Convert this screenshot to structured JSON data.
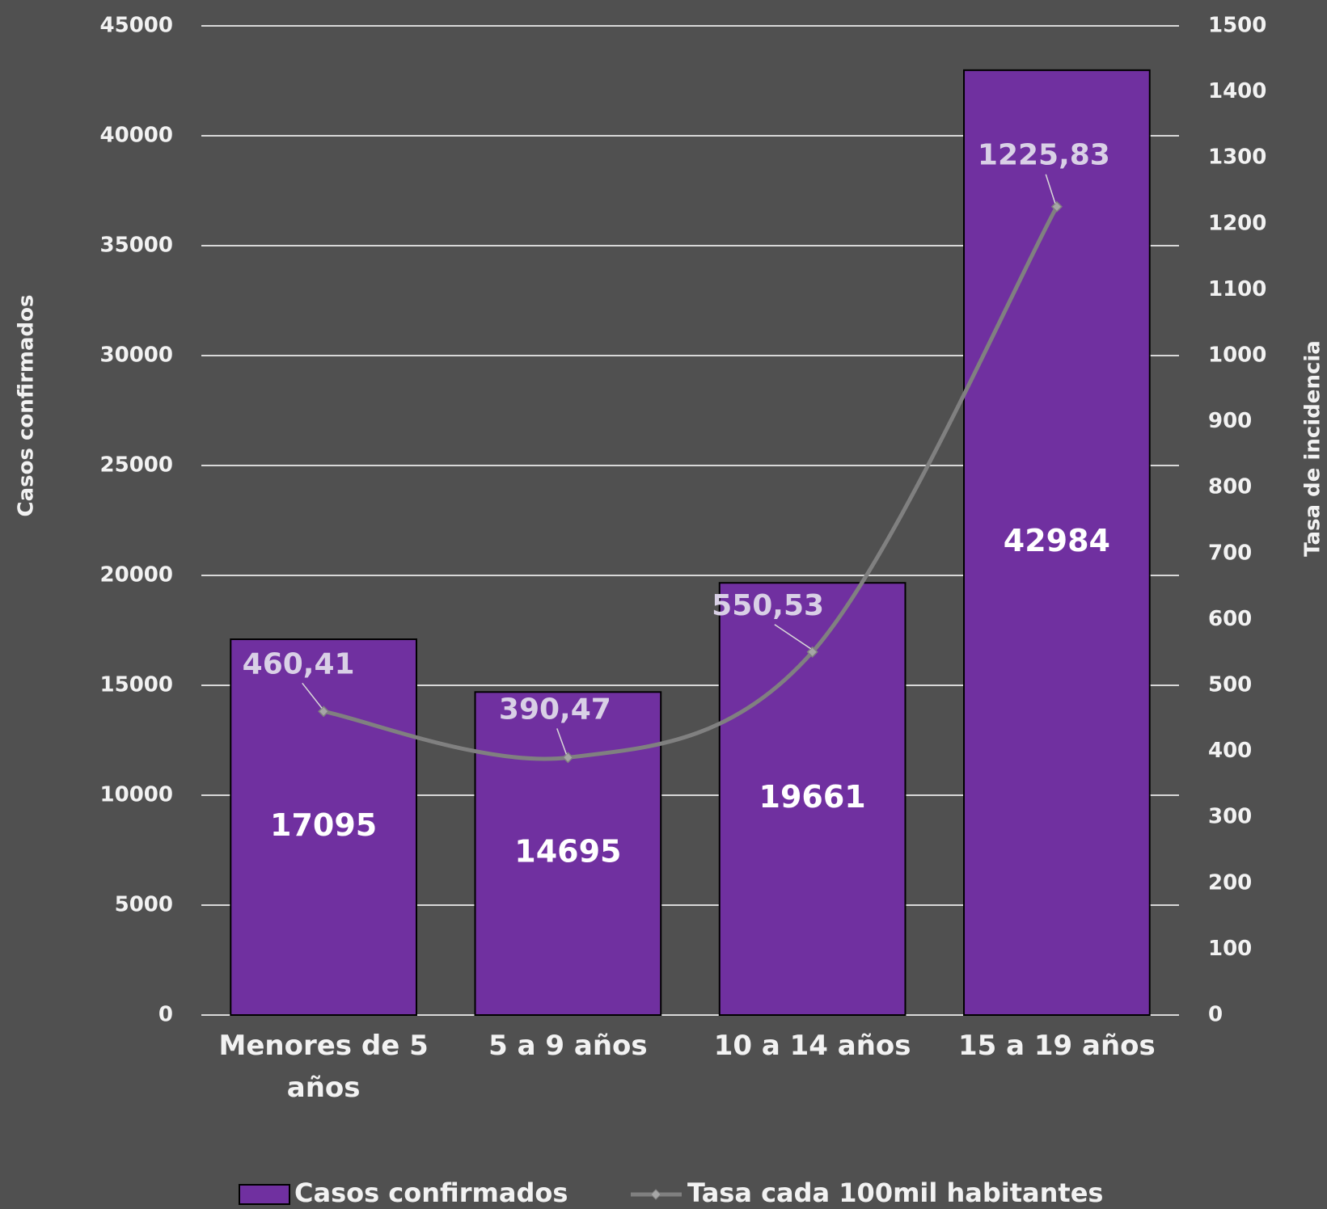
{
  "chart_data": {
    "type": "bar",
    "categories": [
      "Menores de 5 años",
      "5 a 9 años",
      "10 a 14 años",
      "15 a 19 años"
    ],
    "series": [
      {
        "name": "Casos confirmados",
        "type": "bar",
        "color": "#7030a0",
        "values": [
          17095,
          14695,
          19661,
          42984
        ]
      },
      {
        "name": "Tasa cada 100mil habitantes",
        "type": "line",
        "axis": "y2",
        "color": "#808080",
        "values": [
          460.41,
          390.47,
          550.53,
          1225.83
        ],
        "value_labels": [
          "460,41",
          "390,47",
          "550,53",
          "1225,83"
        ]
      }
    ],
    "ylabel": "Casos confirmados",
    "y2label": "Tasa de incidencia",
    "ylim": [
      0,
      45000
    ],
    "yticks": [
      0,
      5000,
      10000,
      15000,
      20000,
      25000,
      30000,
      35000,
      40000,
      45000
    ],
    "y2lim": [
      0,
      1500
    ],
    "y2ticks": [
      0,
      100,
      200,
      300,
      400,
      500,
      600,
      700,
      800,
      900,
      1000,
      1100,
      1200,
      1300,
      1400,
      1500
    ],
    "grid": true,
    "legend": "bottom"
  }
}
